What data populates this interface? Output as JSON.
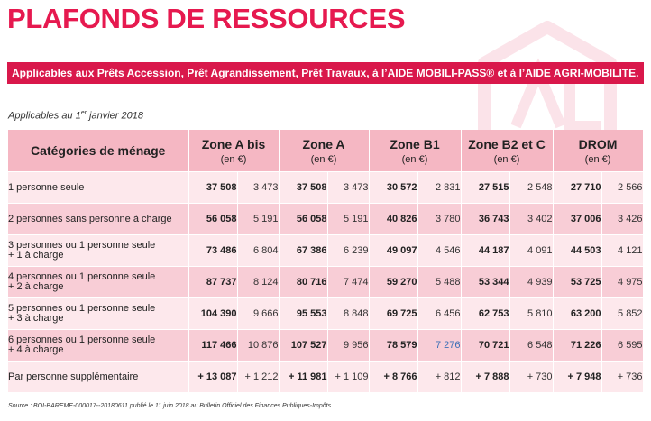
{
  "title": "PLAFONDS DE RESSOURCES",
  "banner": "Applicables aux Prêts Accession, Prêt Agrandissement, Prêt Travaux, à l’AIDE MOBILI-PASS® et à l’AIDE AGRI-MOBILITE.",
  "date": {
    "prefix": "Applicables au 1",
    "sup": "er",
    "suffix": " janvier 2018"
  },
  "table": {
    "category_header": "Catégories de ménage",
    "unit": "(en €)",
    "zones": [
      "Zone A bis",
      "Zone A",
      "Zone B1",
      "Zone B2 et C",
      "DROM"
    ],
    "rows": [
      {
        "label": "1 personne seule",
        "values": [
          "37 508",
          "3 473",
          "37 508",
          "3 473",
          "30 572",
          "2 831",
          "27 515",
          "2 548",
          "27 710",
          "2 566"
        ]
      },
      {
        "label": "2 personnes sans personne à charge",
        "values": [
          "56 058",
          "5 191",
          "56 058",
          "5 191",
          "40 826",
          "3 780",
          "36 743",
          "3 402",
          "37 006",
          "3 426"
        ]
      },
      {
        "label": "3 personnes ou 1 personne seule\n+ 1 à charge",
        "values": [
          "73 486",
          "6 804",
          "67 386",
          "6 239",
          "49 097",
          "4 546",
          "44 187",
          "4 091",
          "44 503",
          "4 121"
        ]
      },
      {
        "label": "4 personnes ou 1 personne seule\n+ 2 à charge",
        "values": [
          "87 737",
          "8 124",
          "80 716",
          "7 474",
          "59 270",
          "5 488",
          "53 344",
          "4 939",
          "53 725",
          "4 975"
        ]
      },
      {
        "label": "5 personnes ou 1 personne seule\n+ 3 à charge",
        "values": [
          "104 390",
          "9 666",
          "95 553",
          "8 848",
          "69 725",
          "6 456",
          "62 753",
          "5 810",
          "63 200",
          "5 852"
        ]
      },
      {
        "label": "6 personnes ou 1 personne seule\n+ 4 à charge",
        "values": [
          "117 466",
          "10 876",
          "107 527",
          "9 956",
          "78 579",
          "7 276",
          "70 721",
          "6 548",
          "71 226",
          "6 595"
        ]
      },
      {
        "label": "Par personne supplémentaire",
        "values": [
          "+ 13 087",
          "+ 1 212",
          "+ 11 981",
          "+ 1 109",
          "+ 8 766",
          "+ 812",
          "+ 7 888",
          "+ 730",
          "+ 7 948",
          "+ 736"
        ]
      }
    ]
  },
  "source": "Source : BOI-BAREME-000017--20180611 publié le 11 juin 2018 au Bulletin Officiel des Finances Publiques-Impôts.",
  "colors": {
    "accent": "#e6194f",
    "banner": "#d9184b",
    "header_bg": "#f5b7c3",
    "row_light": "#fde8ec",
    "row_dark": "#f8cdd6"
  }
}
